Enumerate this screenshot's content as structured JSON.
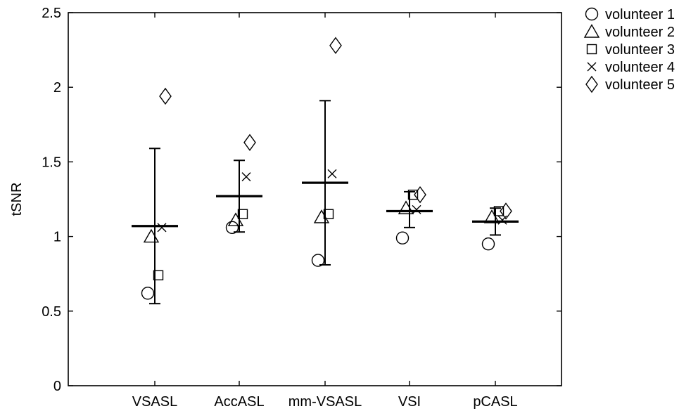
{
  "chart_data": {
    "type": "scatter",
    "title": "",
    "xlabel": "",
    "ylabel": "tSNR",
    "ylim": [
      0,
      2.5
    ],
    "yticks": [
      0,
      0.5,
      1,
      1.5,
      2,
      2.5
    ],
    "ytick_labels": [
      "0",
      "0.5",
      "1",
      "1.5",
      "2",
      "2.5"
    ],
    "categories": [
      "VSASL",
      "AccASL",
      "mm-VSASL",
      "VSI",
      "pCASL"
    ],
    "grid": false,
    "legend_position": "outside-right-top",
    "series": [
      {
        "name": "volunteer 1",
        "marker": "circle",
        "values": [
          0.62,
          1.06,
          0.84,
          0.99,
          0.95
        ]
      },
      {
        "name": "volunteer 2",
        "marker": "triangle",
        "values": [
          1.0,
          1.11,
          1.13,
          1.19,
          1.13
        ]
      },
      {
        "name": "volunteer 3",
        "marker": "square",
        "values": [
          0.74,
          1.15,
          1.15,
          1.28,
          1.17
        ]
      },
      {
        "name": "volunteer 4",
        "marker": "x",
        "values": [
          1.06,
          1.4,
          1.42,
          1.18,
          1.11
        ]
      },
      {
        "name": "volunteer 5",
        "marker": "diamond",
        "values": [
          1.94,
          1.63,
          2.28,
          1.28,
          1.17
        ]
      }
    ],
    "summary": {
      "mean": [
        1.07,
        1.27,
        1.36,
        1.17,
        1.1
      ],
      "lower": [
        0.55,
        1.03,
        0.81,
        1.06,
        1.01
      ],
      "upper": [
        1.59,
        1.51,
        1.91,
        1.3,
        1.19
      ]
    },
    "colors": {
      "marker": "#000000",
      "axis": "#000000"
    }
  }
}
